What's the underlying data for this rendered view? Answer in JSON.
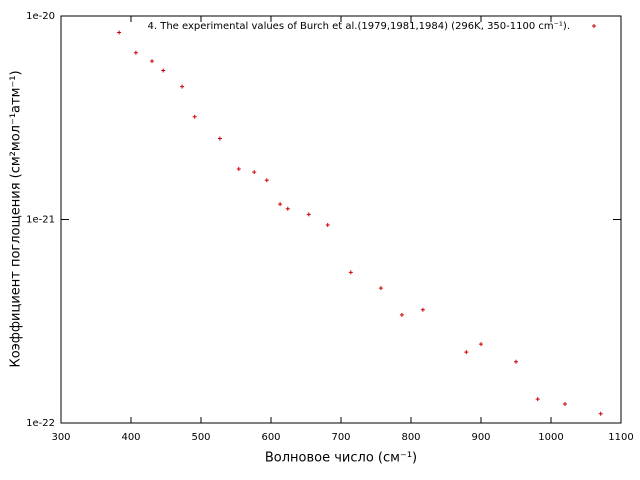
{
  "chart_data": {
    "type": "scatter",
    "x_label": "Волновое число (см⁻¹)",
    "y_label": "Коэффициент поглощения (см²мол⁻¹атм⁻¹)",
    "xlim": [
      300,
      1100
    ],
    "xticks": [
      300,
      400,
      500,
      600,
      700,
      800,
      900,
      1000,
      1100
    ],
    "ylim": [
      1e-22,
      1e-20
    ],
    "log_y": true,
    "yticks": [
      {
        "value": 1e-22,
        "label": "1e-22"
      },
      {
        "value": 1e-21,
        "label": "1e-21"
      },
      {
        "value": 1e-20,
        "label": "1e-20"
      }
    ],
    "legend": "top-right",
    "series": [
      {
        "name": "4. The experimental values of Burch et al.(1979,1981,1984) (296K, 350-1100 cm⁻¹).",
        "color": "#cc0000",
        "x": [
          383,
          407,
          430,
          446,
          473,
          491,
          527,
          554,
          576,
          594,
          613,
          624,
          654,
          681,
          714,
          757,
          787,
          817,
          879,
          900,
          950,
          981,
          1020,
          1071
        ],
        "values": [
          8.3e-21,
          6.6e-21,
          6e-21,
          5.4e-21,
          4.5e-21,
          3.2e-21,
          2.5e-21,
          1.77e-21,
          1.71e-21,
          1.56e-21,
          1.19e-21,
          1.13e-21,
          1.06e-21,
          9.4e-22,
          5.5e-22,
          4.6e-22,
          3.4e-22,
          3.6e-22,
          2.23e-22,
          2.44e-22,
          2e-22,
          1.31e-22,
          1.24e-22,
          1.11e-22
        ]
      }
    ]
  }
}
